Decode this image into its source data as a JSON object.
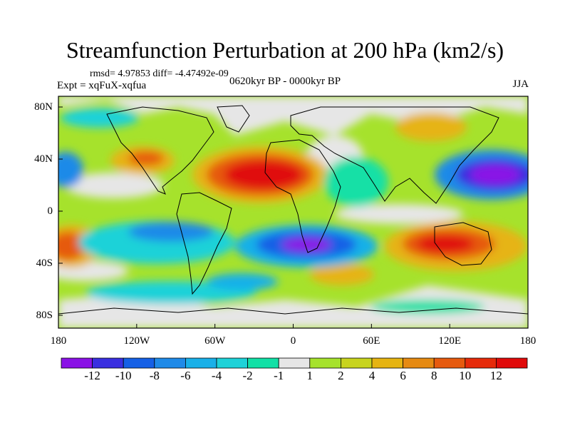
{
  "title": "Streamfunction Perturbation at 200 hPa (km2/s)",
  "stats": "rmsd= 4.97853 diff= -4.47492e-09",
  "experiment": "Expt = xqFuX-xqfua",
  "period": "0620kyr BP - 0000kyr BP",
  "season": "JJA",
  "map": {
    "lat_labels": [
      "80N",
      "40N",
      "0",
      "40S",
      "80S"
    ],
    "lon_labels": [
      "180",
      "120W",
      "60W",
      "0",
      "60E",
      "120E",
      "180"
    ]
  },
  "colorbar": {
    "labels": [
      "-12",
      "-10",
      "-8",
      "-6",
      "-4",
      "-2",
      "-1",
      "1",
      "2",
      "4",
      "6",
      "8",
      "10",
      "12"
    ],
    "colors": [
      "#8a12e6",
      "#3a2fe0",
      "#1560e6",
      "#1f8ae8",
      "#19b0e8",
      "#1ed2d8",
      "#12e0a6",
      "#e6e6e6",
      "#a6e22c",
      "#c8d41e",
      "#e6b412",
      "#e68a12",
      "#e65a0e",
      "#e62a0a",
      "#e00a0a"
    ]
  }
}
